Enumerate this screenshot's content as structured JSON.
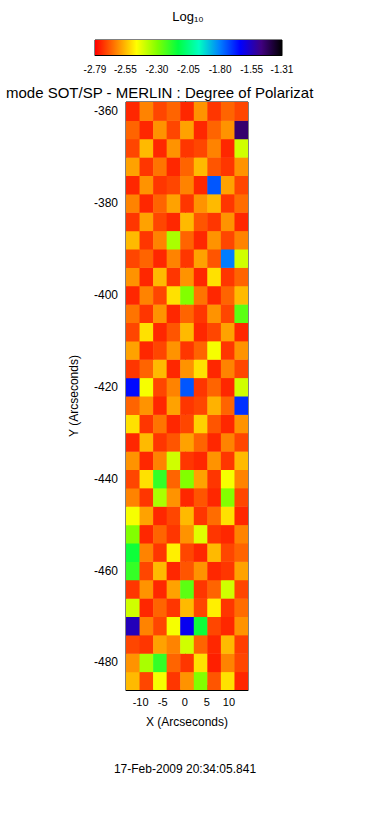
{
  "chart_data": {
    "type": "heatmap",
    "title": "mode SOT/SP - MERLIN : Degree of Polarizat",
    "x_label": "X (Arcseconds)",
    "y_label": "Y (Arcseconds)",
    "annotation": "17-Feb-2009 20:34:05.841",
    "xlim": [
      -13.3,
      14.3
    ],
    "ylim": [
      -486,
      -358
    ],
    "xticks": [
      -10,
      -5,
      0,
      5,
      10
    ],
    "yticks": [
      -480,
      -460,
      -440,
      -420,
      -400,
      -380,
      -360
    ],
    "x": [
      -11.77,
      -8.7,
      -5.63,
      -2.57,
      0.5,
      3.57,
      6.63,
      9.7,
      12.77
    ],
    "y": [
      -484,
      -480,
      -476,
      -472,
      -468,
      -464,
      -460,
      -456,
      -452,
      -448,
      -444,
      -440,
      -436,
      -432,
      -428,
      -424,
      -420,
      -416,
      -412,
      -408,
      -404,
      -400,
      -396,
      -392,
      -388,
      -384,
      -380,
      -376,
      -372,
      -368,
      -364,
      -360
    ],
    "values": [
      [
        -2.55,
        -2.7,
        -2.45,
        -2.72,
        -2.6,
        -2.3,
        -2.68,
        -2.5,
        -2.74
      ],
      [
        -2.6,
        -2.35,
        -2.2,
        -2.66,
        -2.72,
        -2.5,
        -2.75,
        -2.62,
        -2.7
      ],
      [
        -2.7,
        -2.72,
        -2.58,
        -2.62,
        -2.4,
        -2.66,
        -2.74,
        -2.55,
        -2.71
      ],
      [
        -1.55,
        -2.62,
        -2.7,
        -2.45,
        -1.62,
        -2.15,
        -2.7,
        -2.74,
        -2.6
      ],
      [
        -2.4,
        -2.74,
        -2.66,
        -2.72,
        -2.55,
        -2.7,
        -2.48,
        -2.72,
        -2.65
      ],
      [
        -2.72,
        -2.6,
        -2.74,
        -2.58,
        -2.25,
        -2.72,
        -2.66,
        -2.4,
        -2.7
      ],
      [
        -2.2,
        -2.7,
        -2.55,
        -2.74,
        -2.68,
        -2.6,
        -2.74,
        -2.72,
        -2.58
      ],
      [
        -2.15,
        -2.62,
        -2.72,
        -2.48,
        -2.7,
        -2.74,
        -2.55,
        -2.7,
        -2.66
      ],
      [
        -2.3,
        -2.74,
        -2.66,
        -2.72,
        -2.6,
        -2.42,
        -2.72,
        -2.74,
        -2.62
      ],
      [
        -2.45,
        -2.58,
        -2.74,
        -2.7,
        -2.55,
        -2.72,
        -2.65,
        -2.5,
        -2.74
      ],
      [
        -2.62,
        -2.72,
        -2.35,
        -2.6,
        -2.74,
        -2.68,
        -2.74,
        -2.3,
        -2.7
      ],
      [
        -2.7,
        -2.5,
        -2.2,
        -2.66,
        -2.3,
        -2.58,
        -2.72,
        -2.45,
        -2.62
      ],
      [
        -2.6,
        -2.74,
        -2.62,
        -2.4,
        -2.72,
        -2.74,
        -2.6,
        -2.72,
        -2.55
      ],
      [
        -2.74,
        -2.55,
        -2.72,
        -2.68,
        -2.58,
        -2.66,
        -2.74,
        -2.62,
        -2.7
      ],
      [
        -2.5,
        -2.72,
        -2.64,
        -2.74,
        -2.7,
        -2.52,
        -2.68,
        -2.74,
        -2.6
      ],
      [
        -2.66,
        -2.6,
        -2.74,
        -2.58,
        -2.72,
        -2.7,
        -2.56,
        -2.66,
        -1.7
      ],
      [
        -1.65,
        -2.45,
        -2.7,
        -2.62,
        -1.75,
        -2.72,
        -2.66,
        -2.74,
        -2.4
      ],
      [
        -2.72,
        -2.66,
        -2.55,
        -2.74,
        -2.6,
        -2.5,
        -2.74,
        -2.62,
        -2.7
      ],
      [
        -2.58,
        -2.74,
        -2.7,
        -2.6,
        -2.72,
        -2.66,
        -2.45,
        -2.72,
        -2.6
      ],
      [
        -2.7,
        -2.5,
        -2.74,
        -2.68,
        -2.55,
        -2.74,
        -2.7,
        -2.58,
        -2.74
      ],
      [
        -2.64,
        -2.72,
        -2.6,
        -2.74,
        -2.66,
        -2.72,
        -2.6,
        -2.7,
        -2.25
      ],
      [
        -2.74,
        -2.62,
        -2.7,
        -2.5,
        -2.3,
        -2.64,
        -2.74,
        -2.66,
        -2.55
      ],
      [
        -2.6,
        -2.74,
        -2.55,
        -2.72,
        -2.6,
        -2.74,
        -2.5,
        -2.72,
        -2.66
      ],
      [
        -2.7,
        -2.66,
        -2.74,
        -2.62,
        -2.72,
        -2.58,
        -2.68,
        -1.8,
        -2.4
      ],
      [
        -2.55,
        -2.72,
        -2.62,
        -2.35,
        -2.66,
        -2.74,
        -2.6,
        -2.7,
        -2.62
      ],
      [
        -2.72,
        -2.58,
        -2.7,
        -2.74,
        -2.55,
        -2.68,
        -2.72,
        -2.6,
        -2.74
      ],
      [
        -2.62,
        -2.74,
        -2.66,
        -2.58,
        -2.72,
        -2.6,
        -2.55,
        -2.72,
        -2.65
      ],
      [
        -2.74,
        -2.6,
        -2.72,
        -2.7,
        -2.62,
        -2.74,
        -1.75,
        -2.58,
        -2.7
      ],
      [
        -2.58,
        -2.72,
        -2.64,
        -2.74,
        -2.66,
        -2.55,
        -2.68,
        -2.72,
        -2.6
      ],
      [
        -2.7,
        -2.55,
        -2.74,
        -2.6,
        -2.72,
        -2.7,
        -2.62,
        -2.74,
        -2.4
      ],
      [
        -2.66,
        -2.74,
        -2.6,
        -2.7,
        -2.58,
        -2.74,
        -2.66,
        -2.6,
        -1.45
      ],
      [
        -2.74,
        -2.62,
        -2.7,
        -2.66,
        -2.74,
        -2.6,
        -2.72,
        -2.66,
        -2.7
      ]
    ],
    "colorbar": {
      "title": "Log₁₀",
      "range": [
        -2.79,
        -1.31
      ],
      "ticks": [
        -2.79,
        -2.55,
        {
          "value": -2.3,
          "label": "-2.30"
        },
        -2.05,
        {
          "value": -1.8,
          "label": "-1.80"
        },
        -1.55,
        -1.31
      ],
      "colors": [
        "#ff0000",
        "#ff7f00",
        "#ffff00",
        "#7fff00",
        "#00ff40",
        "#00ffc0",
        "#0080ff",
        "#0000ff",
        "#400080",
        "#000000"
      ]
    }
  }
}
